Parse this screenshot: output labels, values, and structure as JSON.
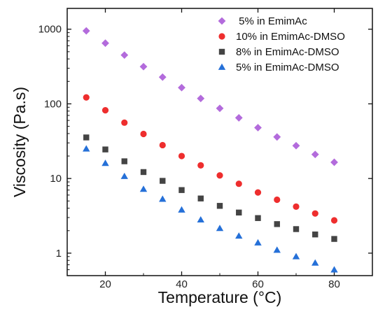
{
  "chart_data": {
    "type": "scatter",
    "xlabel": "Temperature (°C)",
    "ylabel": "Viscosity (Pa.s)",
    "xlim": [
      10,
      90
    ],
    "ylim": [
      0.5,
      1900
    ],
    "yscale": "log",
    "xticks": [
      20,
      40,
      60,
      80
    ],
    "xtick_labels": [
      "20",
      "40",
      "60",
      "80"
    ],
    "yticks": [
      1,
      10,
      100,
      1000
    ],
    "ytick_labels": [
      "1",
      "10",
      "100",
      "1000"
    ],
    "grid": false,
    "legend_position": "top-right",
    "x": [
      15,
      20,
      25,
      30,
      35,
      40,
      45,
      50,
      55,
      60,
      65,
      70,
      75,
      80
    ],
    "series": [
      {
        "name": " 5% in EmimAc",
        "marker": "diamond",
        "color": "#b36bdc",
        "values": [
          950,
          650,
          450,
          315,
          228,
          165,
          118,
          87,
          65,
          48,
          36,
          27.5,
          21,
          16.5
        ]
      },
      {
        "name": "10% in EmimAc-DMSO",
        "marker": "circle",
        "color": "#ee2e2e",
        "values": [
          122,
          82,
          56,
          39.5,
          28,
          20,
          15,
          11,
          8.5,
          6.5,
          5.2,
          4.2,
          3.4,
          2.75
        ]
      },
      {
        "name": "8% in EmimAc-DMSO",
        "marker": "square",
        "color": "#444444",
        "values": [
          35.5,
          24.5,
          17,
          12.2,
          9.3,
          7.0,
          5.4,
          4.3,
          3.5,
          2.95,
          2.45,
          2.1,
          1.78,
          1.55
        ]
      },
      {
        "name": "5% in EmimAc-DMSO",
        "marker": "triangle",
        "color": "#2570d8",
        "values": [
          25,
          16,
          10.7,
          7.2,
          5.3,
          3.8,
          2.8,
          2.15,
          1.7,
          1.38,
          1.1,
          0.9,
          0.74,
          0.6
        ]
      }
    ]
  }
}
